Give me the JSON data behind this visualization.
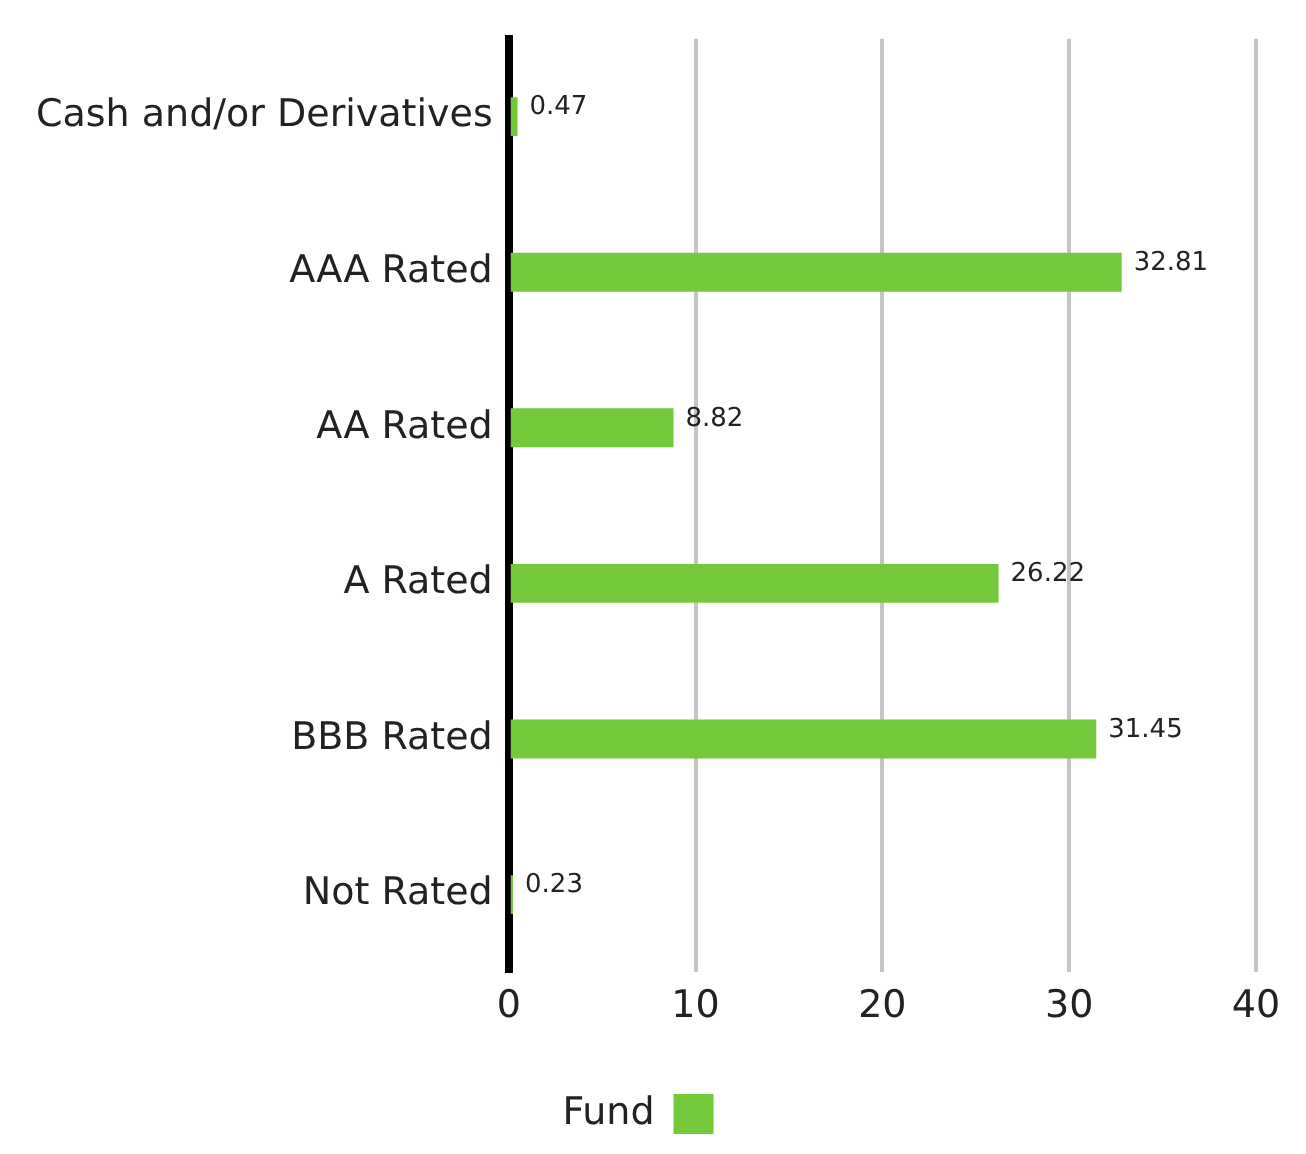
{
  "chart_data": {
    "type": "bar",
    "orientation": "horizontal",
    "categories": [
      "Cash and/or Derivatives",
      "AAA Rated",
      "AA Rated",
      "A Rated",
      "BBB Rated",
      "Not Rated"
    ],
    "series": [
      {
        "name": "Fund",
        "color": "#74c93a",
        "values": [
          0.47,
          32.81,
          8.82,
          26.22,
          31.45,
          0.23
        ]
      }
    ],
    "xlim": [
      0,
      40
    ],
    "xticks": [
      0,
      10,
      20,
      30,
      40
    ],
    "grid": "x",
    "legend": "bottom",
    "data_labels": true
  }
}
